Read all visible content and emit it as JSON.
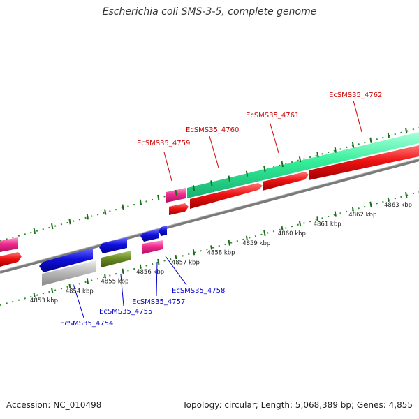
{
  "title": "Escherichia coli SMS-3-5, complete genome",
  "footer": {
    "accession": "Accession: NC_010498",
    "summary": "Topology: circular; Length: 5,068,389 bp; Genes: 4,855"
  },
  "colors": {
    "backbone": "#7a7a7a",
    "tick_minor": "#2e8b2e",
    "tick_major": "#1a6e1a",
    "label_forward": "#cc0000",
    "label_reverse": "#0000cc",
    "cds_red": "#ee1111",
    "cds_blue": "#1111dd",
    "cds_pink": "#ee2a8f",
    "cds_teal": "#33ee99",
    "cds_grey": "#bbbbbb",
    "cds_olive": "#6b8e23"
  },
  "scale_ticks": [
    {
      "kbp": 4853,
      "label": "4853 kbp"
    },
    {
      "kbp": 4854,
      "label": "4854 kbp"
    },
    {
      "kbp": 4855,
      "label": "4855 kbp"
    },
    {
      "kbp": 4856,
      "label": "4856 kbp"
    },
    {
      "kbp": 4857,
      "label": "4857 kbp"
    },
    {
      "kbp": 4858,
      "label": "4858 kbp"
    },
    {
      "kbp": 4859,
      "label": "4859 kbp"
    },
    {
      "kbp": 4860,
      "label": "4860 kbp"
    },
    {
      "kbp": 4861,
      "label": "4861 kbp"
    },
    {
      "kbp": 4862,
      "label": "4862 kbp"
    },
    {
      "kbp": 4863,
      "label": "4863 kbp"
    }
  ],
  "gene_labels_forward": [
    "EcSMS35_4759",
    "EcSMS35_4760",
    "EcSMS35_4761",
    "EcSMS35_4762"
  ],
  "gene_labels_reverse": [
    "EcSMS35_4754",
    "EcSMS35_4755",
    "EcSMS35_4757",
    "EcSMS35_4758"
  ],
  "features": [
    {
      "track": "forward-1",
      "color": "cds_pink",
      "start": 4852.2,
      "end": 4852.6,
      "strand": "+",
      "arrow": false
    },
    {
      "track": "forward-2",
      "color": "cds_red",
      "start": 4852.2,
      "end": 4852.6,
      "strand": "+",
      "arrow": true
    },
    {
      "track": "reverse-1",
      "color": "cds_blue",
      "start": 4854.1,
      "end": 4854.9,
      "strand": "-",
      "arrow": true
    },
    {
      "track": "reverse-1",
      "color": "cds_blue",
      "start": 4855.0,
      "end": 4855.4,
      "strand": "-",
      "arrow": true
    },
    {
      "track": "reverse-1",
      "color": "cds_blue",
      "start": 4856.0,
      "end": 4856.3,
      "strand": "-",
      "arrow": true
    },
    {
      "track": "reverse-1",
      "color": "cds_blue",
      "start": 4856.35,
      "end": 4856.45,
      "strand": "-",
      "arrow": true
    },
    {
      "track": "reverse-2",
      "color": "cds_grey",
      "start": 4854.1,
      "end": 4854.9,
      "strand": "-",
      "arrow": false
    },
    {
      "track": "reverse-2",
      "color": "cds_olive",
      "start": 4855.1,
      "end": 4855.5,
      "strand": "-",
      "arrow": false
    },
    {
      "track": "reverse-2",
      "color": "cds_pink",
      "start": 4856.1,
      "end": 4856.4,
      "strand": "-",
      "arrow": false
    },
    {
      "track": "forward-1",
      "color": "cds_pink",
      "start": 4857.1,
      "end": 4857.3,
      "strand": "+",
      "arrow": false
    },
    {
      "track": "forward-1",
      "color": "cds_teal",
      "start": 4857.4,
      "end": 4863.5,
      "strand": "+",
      "arrow": false
    },
    {
      "track": "forward-2",
      "color": "cds_red",
      "start": 4857.1,
      "end": 4857.3,
      "strand": "+",
      "arrow": true
    },
    {
      "track": "forward-2",
      "color": "cds_red",
      "start": 4857.4,
      "end": 4859.1,
      "strand": "+",
      "arrow": true
    },
    {
      "track": "forward-2",
      "color": "cds_red",
      "start": 4859.2,
      "end": 4860.3,
      "strand": "+",
      "arrow": true
    },
    {
      "track": "forward-2",
      "color": "cds_red",
      "start": 4860.4,
      "end": 4863.5,
      "strand": "+",
      "arrow": false
    }
  ]
}
